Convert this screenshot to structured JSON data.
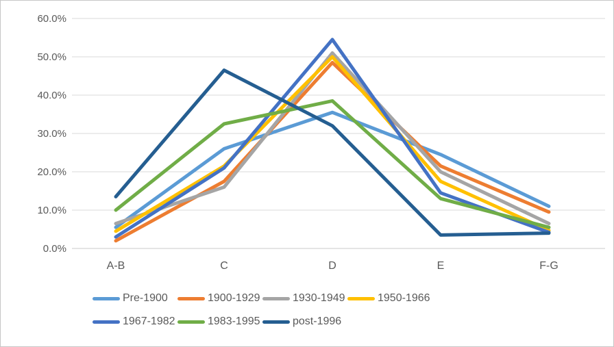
{
  "chart_data": {
    "type": "line",
    "title": "",
    "xlabel": "",
    "ylabel": "",
    "categories": [
      "A-B",
      "C",
      "D",
      "E",
      "F-G"
    ],
    "series": [
      {
        "name": "Pre-1900",
        "color": "#5B9BD5",
        "values": [
          5.5,
          26.0,
          35.5,
          24.5,
          11.0
        ]
      },
      {
        "name": "1900-1929",
        "color": "#ED7D31",
        "values": [
          2.0,
          17.5,
          48.5,
          21.5,
          9.5
        ]
      },
      {
        "name": "1930-1949",
        "color": "#A5A5A5",
        "values": [
          6.5,
          16.0,
          51.0,
          20.0,
          6.5
        ]
      },
      {
        "name": "1950-1966",
        "color": "#FFC000",
        "values": [
          4.5,
          21.5,
          50.0,
          17.5,
          4.7
        ]
      },
      {
        "name": "1967-1982",
        "color": "#4472C4",
        "values": [
          3.0,
          21.0,
          54.5,
          14.5,
          4.2
        ]
      },
      {
        "name": "1983-1995",
        "color": "#70AD47",
        "values": [
          10.0,
          32.5,
          38.5,
          13.0,
          5.5
        ]
      },
      {
        "name": "post-1996",
        "color": "#255E91",
        "values": [
          13.5,
          46.5,
          32.0,
          3.5,
          4.0
        ]
      }
    ],
    "y_axis": {
      "min": 0,
      "max": 60,
      "step": 10,
      "tick_labels": [
        "0.0%",
        "10.0%",
        "20.0%",
        "30.0%",
        "40.0%",
        "50.0%",
        "60.0%"
      ]
    },
    "grid": true,
    "legend_position": "bottom",
    "legend_rows": [
      [
        0,
        1,
        2,
        3
      ],
      [
        4,
        5,
        6
      ]
    ]
  },
  "style": {
    "grid_color": "#D9D9D9",
    "axis_color": "#C9C9C9",
    "tick_text_color": "#595959",
    "background": "#FFFFFF",
    "line_width": 5,
    "tick_font_size": 15,
    "category_font_size": 16
  }
}
